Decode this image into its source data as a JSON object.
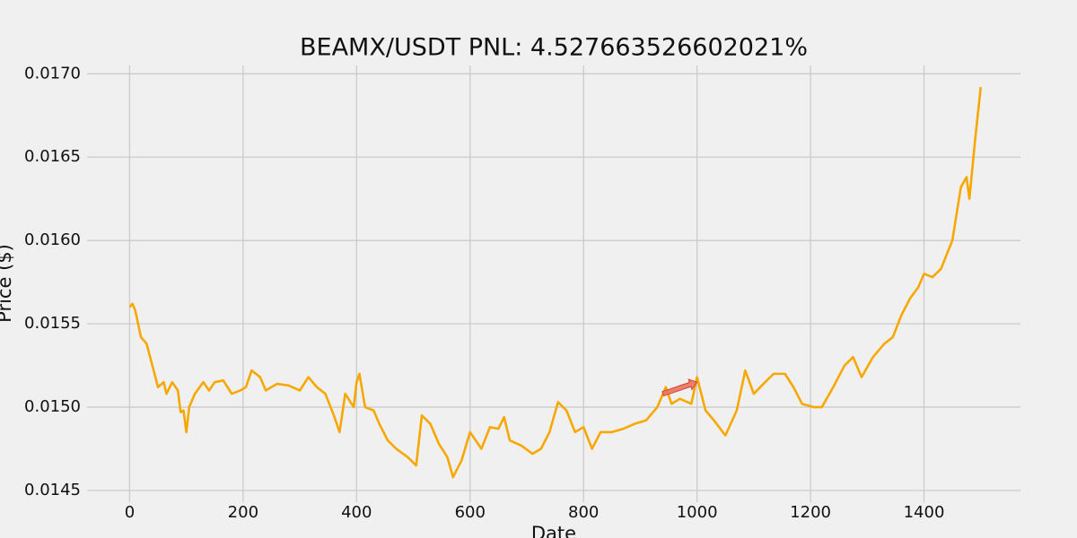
{
  "chart_data": {
    "type": "line",
    "title": "BEAMX/USDT  PNL: 4.527663526602021%",
    "x_label": "Date",
    "y_label": "Price ($)",
    "xlim": [
      -75,
      1570
    ],
    "ylim": [
      0.01443,
      0.01705
    ],
    "xticks": [
      0,
      200,
      400,
      600,
      800,
      1000,
      1200,
      1400
    ],
    "yticks": [
      {
        "value": 0.0145,
        "label": "0.0145"
      },
      {
        "value": 0.015,
        "label": "0.0150"
      },
      {
        "value": 0.0155,
        "label": "0.0155"
      },
      {
        "value": 0.016,
        "label": "0.0160"
      },
      {
        "value": 0.0165,
        "label": "0.0165"
      },
      {
        "value": 0.017,
        "label": "0.0170"
      }
    ],
    "grid": true,
    "series": [
      {
        "color": "#f7a800",
        "x": [
          0,
          5,
          10,
          15,
          20,
          30,
          40,
          50,
          60,
          65,
          75,
          85,
          90,
          95,
          100,
          105,
          115,
          130,
          140,
          150,
          165,
          180,
          195,
          205,
          215,
          230,
          240,
          260,
          280,
          300,
          315,
          330,
          345,
          360,
          370,
          380,
          395,
          400,
          405,
          415,
          430,
          440,
          455,
          470,
          490,
          505,
          515,
          530,
          545,
          560,
          570,
          585,
          600,
          620,
          635,
          650,
          660,
          670,
          690,
          710,
          725,
          740,
          755,
          770,
          785,
          800,
          815,
          830,
          850,
          870,
          890,
          910,
          930,
          945,
          955,
          970,
          990,
          1000,
          1015,
          1030,
          1050,
          1070,
          1085,
          1100,
          1120,
          1135,
          1155,
          1170,
          1185,
          1205,
          1220,
          1240,
          1260,
          1275,
          1290,
          1310,
          1330,
          1345,
          1360,
          1375,
          1390,
          1400,
          1415,
          1430,
          1450,
          1465,
          1475,
          1480,
          1490,
          1500
        ],
        "values": [
          0.0156,
          0.01562,
          0.01558,
          0.0155,
          0.01542,
          0.01538,
          0.01525,
          0.01512,
          0.01515,
          0.01508,
          0.01515,
          0.0151,
          0.01497,
          0.01498,
          0.01485,
          0.015,
          0.01508,
          0.01515,
          0.0151,
          0.01515,
          0.01516,
          0.01508,
          0.0151,
          0.01512,
          0.01522,
          0.01518,
          0.0151,
          0.01514,
          0.01513,
          0.0151,
          0.01518,
          0.01512,
          0.01508,
          0.01495,
          0.01485,
          0.01508,
          0.015,
          0.01515,
          0.0152,
          0.015,
          0.01498,
          0.0149,
          0.0148,
          0.01475,
          0.0147,
          0.01465,
          0.01495,
          0.0149,
          0.01478,
          0.0147,
          0.01458,
          0.01468,
          0.01485,
          0.01475,
          0.01488,
          0.01487,
          0.01494,
          0.0148,
          0.01477,
          0.01472,
          0.01475,
          0.01485,
          0.01503,
          0.01498,
          0.01485,
          0.01488,
          0.01475,
          0.01485,
          0.01485,
          0.01487,
          0.0149,
          0.01492,
          0.015,
          0.01512,
          0.01502,
          0.01505,
          0.01502,
          0.01518,
          0.01498,
          0.01492,
          0.01483,
          0.01498,
          0.01522,
          0.01508,
          0.01515,
          0.0152,
          0.0152,
          0.01512,
          0.01502,
          0.015,
          0.015,
          0.01512,
          0.01525,
          0.0153,
          0.01518,
          0.0153,
          0.01538,
          0.01542,
          0.01555,
          0.01565,
          0.01572,
          0.0158,
          0.01578,
          0.01583,
          0.016,
          0.01632,
          0.01638,
          0.01625,
          0.0166,
          0.01692
        ]
      }
    ],
    "arrow": {
      "color": "#e8735f",
      "x": [
        940,
        1000
      ],
      "y": [
        0.01508,
        0.01515
      ]
    }
  }
}
